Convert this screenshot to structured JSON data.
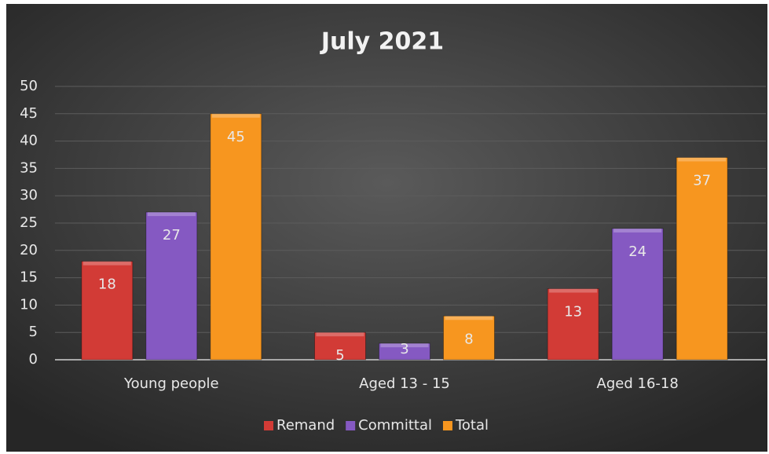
{
  "chart_data": {
    "type": "bar",
    "title": "July 2021",
    "categories": [
      "Young people",
      "Aged 13 - 15",
      "Aged 16-18"
    ],
    "series": [
      {
        "name": "Remand",
        "color": "#d23b36",
        "values": [
          18,
          5,
          13
        ]
      },
      {
        "name": "Committal",
        "color": "#8559c2",
        "values": [
          27,
          3,
          24
        ]
      },
      {
        "name": "Total",
        "color": "#f7961f",
        "values": [
          45,
          8,
          37
        ]
      }
    ],
    "ylim": [
      0,
      50
    ],
    "yticks": [
      0,
      5,
      10,
      15,
      20,
      25,
      30,
      35,
      40,
      45,
      50
    ],
    "grid": true,
    "legend": "bottom"
  }
}
